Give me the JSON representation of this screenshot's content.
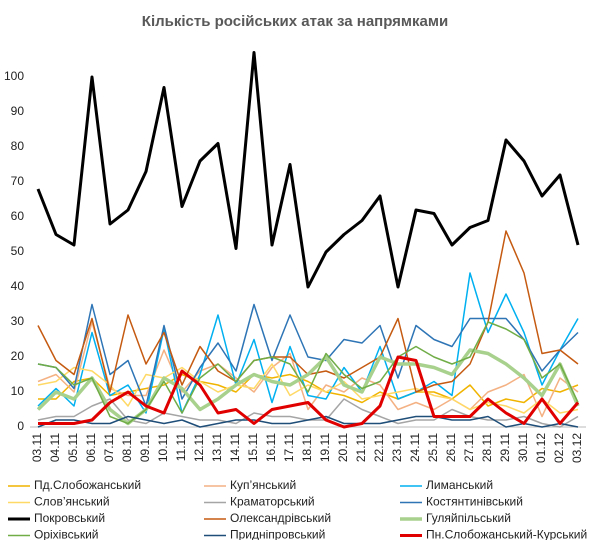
{
  "chart_data": {
    "type": "line",
    "title": "Кількість російських атак за напрямками",
    "categories": [
      "03.11",
      "04.11",
      "05.11",
      "06.11",
      "07.11",
      "08.11",
      "09.11",
      "10.11",
      "11.11",
      "12.11",
      "13.11",
      "14.11",
      "15.11",
      "16.11",
      "17.11",
      "18.11",
      "19.11",
      "20.11",
      "21.11",
      "22.11",
      "23.11",
      "24.11",
      "25.11",
      "26.11",
      "27.11",
      "28.11",
      "29.11",
      "30.11",
      "01.12",
      "02.12",
      "03.12"
    ],
    "ylim": [
      0,
      108
    ],
    "yticks": [
      0,
      10,
      20,
      30,
      40,
      50,
      60,
      70,
      80,
      90,
      100
    ],
    "grid": false,
    "legend": "bottom",
    "series": [
      {
        "name": "Пд.Слобожанський",
        "color": "#f0b400",
        "width": 1.5,
        "values": [
          8,
          8,
          13,
          14,
          9,
          10,
          11,
          12,
          15,
          13,
          12,
          10,
          15,
          14,
          15,
          13,
          10,
          9,
          7,
          10,
          8,
          10,
          10,
          8,
          12,
          6,
          8,
          7,
          11,
          10,
          12
        ]
      },
      {
        "name": "Куп’янський",
        "color": "#f4b183",
        "width": 1.5,
        "values": [
          13,
          15,
          10,
          30,
          11,
          9,
          9,
          22,
          10,
          16,
          18,
          14,
          10,
          17,
          21,
          5,
          12,
          10,
          14,
          12,
          5,
          7,
          5,
          8,
          5,
          10,
          12,
          15,
          3,
          14,
          10
        ]
      },
      {
        "name": "Лиманський",
        "color": "#00b0f0",
        "width": 1.5,
        "values": [
          6,
          11,
          6,
          27,
          9,
          12,
          4,
          28,
          4,
          15,
          32,
          12,
          25,
          7,
          23,
          9,
          8,
          17,
          10,
          23,
          8,
          10,
          13,
          9,
          44,
          27,
          38,
          27,
          12,
          22,
          31
        ]
      },
      {
        "name": "Слов’янський",
        "color": "#ffd966",
        "width": 1.5,
        "values": [
          12,
          13,
          17,
          16,
          12,
          6,
          15,
          14,
          17,
          13,
          10,
          12,
          11,
          18,
          9,
          12,
          10,
          13,
          8,
          9,
          10,
          11,
          9,
          8,
          5,
          7,
          6,
          4,
          8,
          4,
          5
        ]
      },
      {
        "name": "Краматорський",
        "color": "#a5a5a5",
        "width": 1.5,
        "values": [
          2,
          3,
          3,
          6,
          8,
          2,
          1,
          4,
          3,
          2,
          2,
          1,
          4,
          3,
          3,
          2,
          2,
          8,
          5,
          3,
          1,
          2,
          2,
          5,
          3,
          2,
          2,
          3,
          1,
          0,
          3
        ]
      },
      {
        "name": "Костянтинівський",
        "color": "#2e75b6",
        "width": 1.5,
        "values": [
          18,
          17,
          11,
          35,
          15,
          19,
          6,
          29,
          8,
          17,
          24,
          16,
          35,
          19,
          32,
          20,
          19,
          25,
          24,
          29,
          14,
          29,
          25,
          23,
          31,
          31,
          31,
          25,
          16,
          22,
          27
        ]
      },
      {
        "name": "Покровський",
        "color": "#000000",
        "width": 3,
        "values": [
          68,
          55,
          52,
          100,
          58,
          62,
          73,
          97,
          63,
          76,
          81,
          51,
          107,
          52,
          75,
          40,
          50,
          55,
          59,
          66,
          40,
          62,
          61,
          52,
          57,
          59,
          82,
          76,
          66,
          72,
          52
        ]
      },
      {
        "name": "Олександрівський",
        "color": "#c55a11",
        "width": 1.5,
        "values": [
          29,
          19,
          15,
          31,
          10,
          32,
          18,
          27,
          12,
          23,
          16,
          13,
          19,
          20,
          20,
          15,
          16,
          14,
          17,
          20,
          31,
          10,
          12,
          13,
          18,
          30,
          56,
          44,
          21,
          22,
          18
        ]
      },
      {
        "name": "Гуляйпільський",
        "color": "#a9d18e",
        "width": 3.5,
        "values": [
          5,
          10,
          8,
          14,
          5,
          1,
          5,
          14,
          11,
          5,
          8,
          12,
          15,
          13,
          12,
          15,
          20,
          12,
          10,
          20,
          18,
          18,
          17,
          15,
          22,
          21,
          18,
          14,
          9,
          18,
          6
        ]
      },
      {
        "name": "Оріхівський",
        "color": "#70ad47",
        "width": 1.5,
        "values": [
          18,
          17,
          12,
          14,
          3,
          1,
          5,
          13,
          4,
          14,
          18,
          13,
          19,
          20,
          18,
          10,
          21,
          15,
          11,
          13,
          20,
          23,
          20,
          18,
          20,
          30,
          28,
          25,
          14,
          18,
          7
        ]
      },
      {
        "name": "Придніпровський",
        "color": "#1f4e79",
        "width": 1.5,
        "values": [
          0,
          2,
          2,
          1,
          1,
          3,
          2,
          1,
          2,
          0,
          1,
          2,
          2,
          1,
          1,
          2,
          3,
          1,
          1,
          1,
          2,
          3,
          3,
          2,
          2,
          3,
          0,
          1,
          0,
          1,
          0
        ]
      },
      {
        "name": "Пн.Слобожанський-Курський",
        "color": "#e00000",
        "width": 3,
        "values": [
          1,
          1,
          1,
          2,
          7,
          10,
          6,
          4,
          16,
          12,
          4,
          5,
          1,
          5,
          6,
          7,
          2,
          0,
          1,
          6,
          20,
          19,
          3,
          3,
          3,
          8,
          4,
          1,
          8,
          1,
          7
        ]
      }
    ]
  }
}
